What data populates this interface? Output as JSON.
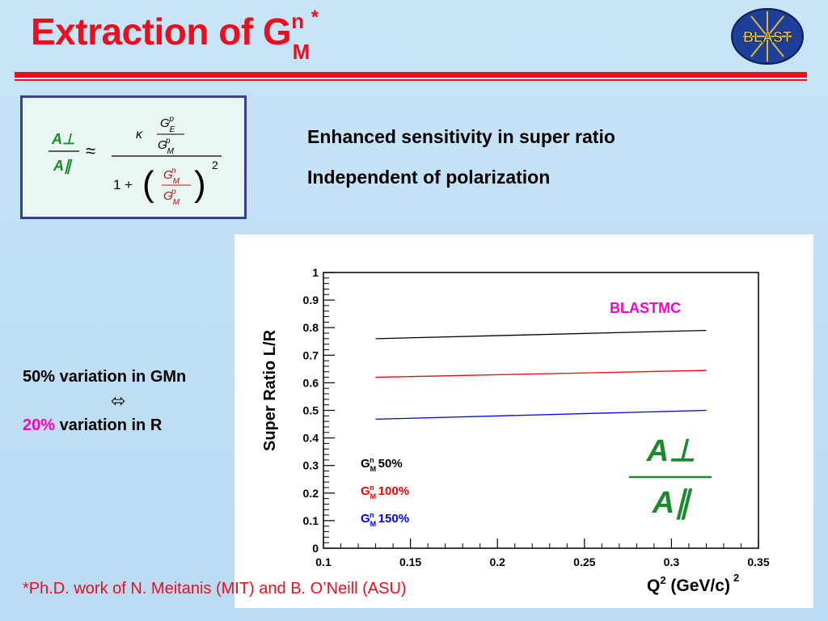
{
  "slide": {
    "title_main": "Extraction of G",
    "title_sup": "n",
    "title_sub": "M",
    "title_star": "*",
    "logo_text": "BLAST"
  },
  "formula": {
    "numerator": "A⊥",
    "denominator": "A∥",
    "approx": "≈",
    "kappa": "κ",
    "one_plus": "1 +",
    "power": "2"
  },
  "bullets": [
    "Enhanced sensitivity in super ratio",
    "Independent of polarization"
  ],
  "side_note": {
    "line1": "50% variation in GMn",
    "arrow": "⬄",
    "line3_pct": "20%",
    "line3_rest": " variation in R"
  },
  "footnote": "*Ph.D. work of N. Meitanis (MIT) and B. O’Neill (ASU)",
  "chart_data": {
    "type": "line",
    "ylabel": "Super Ratio L/R",
    "xlabel": "Q² (GeV/c)²",
    "annotation": "BLASTMC",
    "inset_formula": {
      "numerator": "A⊥",
      "denominator": "A∥"
    },
    "xlim": [
      0.1,
      0.35
    ],
    "ylim": [
      0,
      1
    ],
    "x_ticks": [
      "0.1",
      "0.15",
      "0.2",
      "0.25",
      "0.3",
      "0.35"
    ],
    "y_ticks": [
      "0",
      "0.1",
      "0.2",
      "0.3",
      "0.4",
      "0.5",
      "0.6",
      "0.7",
      "0.8",
      "0.9",
      "1"
    ],
    "legend_placement": "bottom-left",
    "series": [
      {
        "name": "G 50%",
        "name_sub": "M",
        "name_sup": "n",
        "color": "#000000",
        "x": [
          0.13,
          0.32
        ],
        "y": [
          0.76,
          0.79
        ]
      },
      {
        "name": "G 100%",
        "name_sub": "M",
        "name_sup": "n",
        "color": "#ff0000",
        "x": [
          0.13,
          0.32
        ],
        "y": [
          0.62,
          0.645
        ]
      },
      {
        "name": "G 150%",
        "name_sub": "M",
        "name_sup": "n",
        "color": "#0000ff",
        "x": [
          0.13,
          0.32
        ],
        "y": [
          0.468,
          0.5
        ]
      }
    ]
  }
}
